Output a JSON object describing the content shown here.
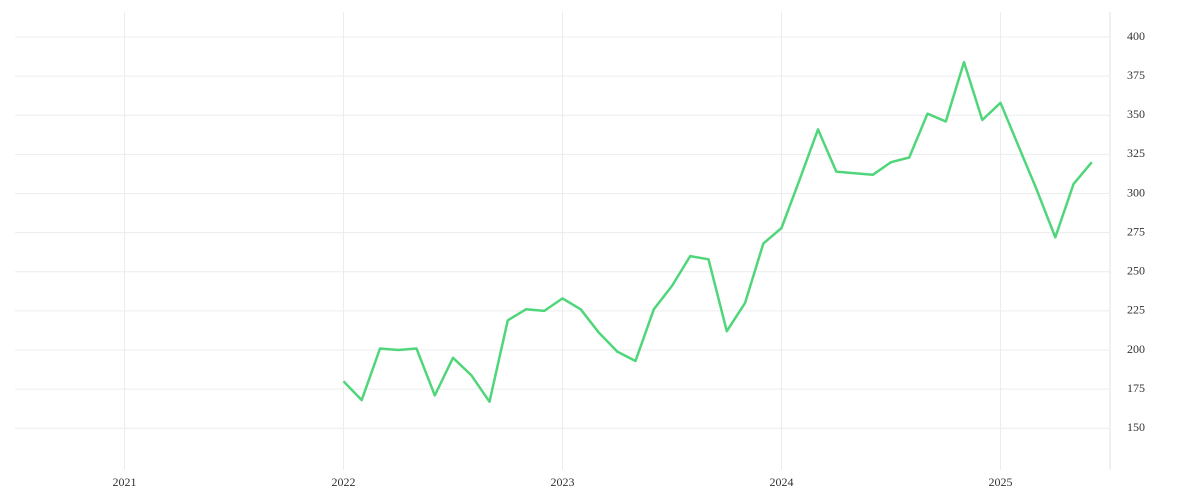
{
  "chart_data": {
    "type": "line",
    "x": [
      "2022-01",
      "2022-02",
      "2022-03",
      "2022-04",
      "2022-05",
      "2022-06",
      "2022-07",
      "2022-08",
      "2022-09",
      "2022-10",
      "2022-11",
      "2022-12",
      "2023-01",
      "2023-02",
      "2023-03",
      "2023-04",
      "2023-05",
      "2023-06",
      "2023-07",
      "2023-08",
      "2023-09",
      "2023-10",
      "2023-11",
      "2023-12",
      "2024-01",
      "2024-02",
      "2024-03",
      "2024-04",
      "2024-05",
      "2024-06",
      "2024-07",
      "2024-08",
      "2024-09",
      "2024-10",
      "2024-11",
      "2024-12",
      "2025-01",
      "2025-02",
      "2025-03",
      "2025-04",
      "2025-05",
      "2025-06"
    ],
    "series": [
      {
        "color": "#50d67a",
        "values": [
          180,
          168,
          201,
          200,
          201,
          171,
          195,
          184,
          167,
          219,
          226,
          225,
          233,
          226,
          211,
          199,
          193,
          226,
          241,
          260,
          258,
          212,
          230,
          268,
          278,
          309,
          341,
          314,
          313,
          312,
          320,
          323,
          351,
          346,
          384,
          347,
          358,
          330,
          302,
          272,
          306,
          320
        ]
      }
    ],
    "xlim": [
      "2020-07",
      "2025-07"
    ],
    "xticks": [
      "2021",
      "2022",
      "2023",
      "2024",
      "2025"
    ],
    "ylim": [
      131,
      416
    ],
    "yticks": [
      150,
      175,
      200,
      225,
      250,
      275,
      300,
      325,
      350,
      375,
      400
    ],
    "grid": true
  }
}
